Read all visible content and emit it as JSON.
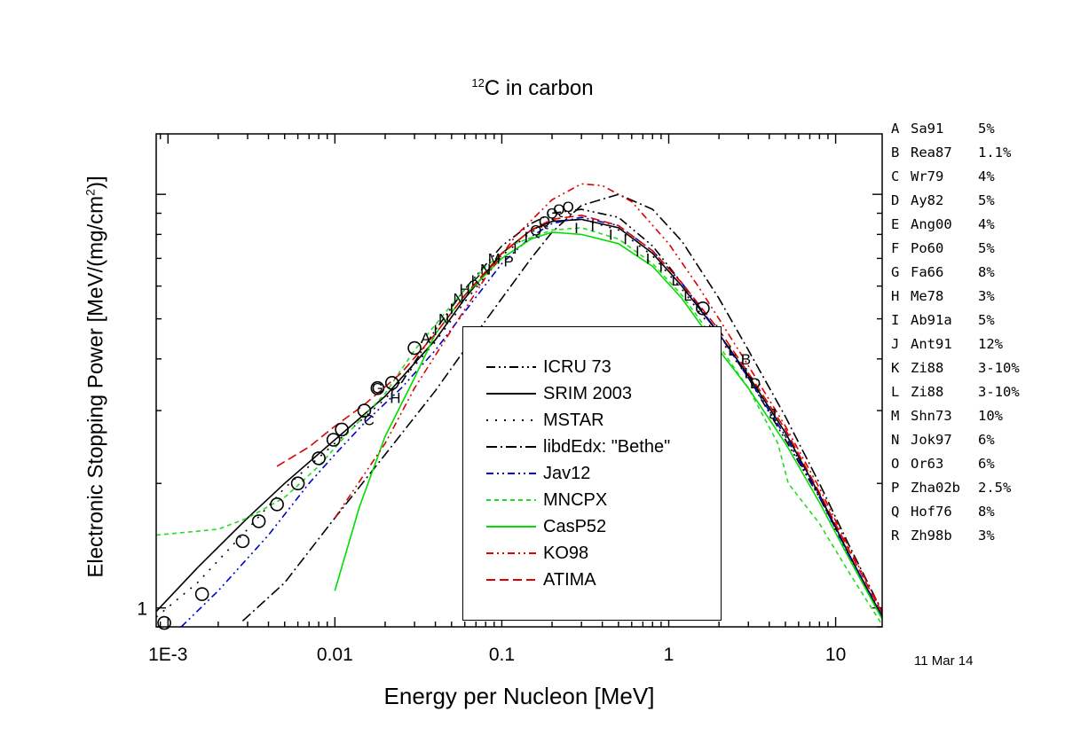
{
  "title": {
    "prefix": "12",
    "text": "C in carbon"
  },
  "xlabel": "Energy per Nucleon [MeV]",
  "ylabel": "Electronic Stopping Power [MeV/(mg/cm",
  "ylabel_sup": "2",
  "ylabel_end": ")]",
  "date_stamp": "11 Mar 14",
  "references": [
    {
      "letter": "A",
      "name": "Sa91",
      "error": "5%"
    },
    {
      "letter": "B",
      "name": "Rea87",
      "error": "1.1%"
    },
    {
      "letter": "C",
      "name": "Wr79",
      "error": "4%"
    },
    {
      "letter": "D",
      "name": "Ay82",
      "error": "5%"
    },
    {
      "letter": "E",
      "name": "Ang00",
      "error": "4%"
    },
    {
      "letter": "F",
      "name": "Po60",
      "error": "5%"
    },
    {
      "letter": "G",
      "name": "Fa66",
      "error": "8%"
    },
    {
      "letter": "H",
      "name": "Me78",
      "error": "3%"
    },
    {
      "letter": "I",
      "name": "Ab91a",
      "error": "5%"
    },
    {
      "letter": "J",
      "name": "Ant91",
      "error": "12%"
    },
    {
      "letter": "K",
      "name": "Zi88",
      "error": "3-10%"
    },
    {
      "letter": "L",
      "name": "Zi88",
      "error": "3-10%"
    },
    {
      "letter": "M",
      "name": "Shn73",
      "error": "10%"
    },
    {
      "letter": "N",
      "name": "Jok97",
      "error": "6%"
    },
    {
      "letter": "O",
      "name": "Or63",
      "error": "6%"
    },
    {
      "letter": "P",
      "name": "Zha02b",
      "error": "2.5%"
    },
    {
      "letter": "Q",
      "name": "Hof76",
      "error": "8%"
    },
    {
      "letter": "R",
      "name": "Zh98b",
      "error": "3%"
    }
  ],
  "chart_data": {
    "type": "line",
    "xscale": "log",
    "yscale": "log",
    "xlim": [
      0.00085,
      19
    ],
    "ylim": [
      0.9,
      14
    ],
    "xticks": [
      {
        "value": 0.001,
        "label": "1E-3"
      },
      {
        "value": 0.01,
        "label": "0.01"
      },
      {
        "value": 0.1,
        "label": "0.1"
      },
      {
        "value": 1,
        "label": "1"
      },
      {
        "value": 10,
        "label": "10"
      }
    ],
    "yticks": [
      {
        "value": 1,
        "label": "1"
      }
    ],
    "legend_placement": "center",
    "series": [
      {
        "name": "ICRU 73",
        "color": "#000000",
        "dash": "10,4,2,4,2,4",
        "x": [
          0.025,
          0.04,
          0.06,
          0.1,
          0.15,
          0.2,
          0.3,
          0.5,
          0.8,
          1.2,
          2,
          3,
          5,
          8,
          12,
          19
        ],
        "y": [
          3.5,
          4.7,
          5.9,
          7.5,
          8.5,
          9.0,
          9.2,
          8.8,
          7.5,
          6.1,
          4.6,
          3.6,
          2.55,
          1.85,
          1.35,
          0.95
        ]
      },
      {
        "name": "SRIM 2003",
        "color": "#000000",
        "dash": "",
        "x": [
          0.00085,
          0.0015,
          0.003,
          0.005,
          0.01,
          0.02,
          0.04,
          0.06,
          0.1,
          0.15,
          0.2,
          0.3,
          0.5,
          0.8,
          1.2,
          2,
          3,
          5,
          8,
          12,
          19
        ],
        "y": [
          0.98,
          1.25,
          1.65,
          2.0,
          2.55,
          3.25,
          4.45,
          5.6,
          7.2,
          8.2,
          8.6,
          8.7,
          8.3,
          7.2,
          6.0,
          4.6,
          3.65,
          2.65,
          1.88,
          1.35,
          0.95
        ]
      },
      {
        "name": "MSTAR",
        "color": "#000000",
        "dash": "2,8",
        "x": [
          0.00085,
          0.0015,
          0.003,
          0.005,
          0.01,
          0.02,
          0.04,
          0.06,
          0.1,
          0.15,
          0.2,
          0.3,
          0.5,
          0.8,
          1.2,
          2,
          3,
          5,
          8,
          12,
          19
        ],
        "y": [
          0.95,
          1.15,
          1.55,
          1.95,
          2.5,
          3.2,
          4.4,
          5.5,
          7.1,
          8.1,
          8.6,
          8.7,
          8.2,
          7.1,
          5.9,
          4.5,
          3.6,
          2.6,
          1.85,
          1.33,
          0.94
        ]
      },
      {
        "name": "libdEdx: \"Bethe\"",
        "color": "#000000",
        "dash": "12,4,2,4",
        "x": [
          0.0028,
          0.005,
          0.01,
          0.02,
          0.04,
          0.07,
          0.1,
          0.15,
          0.2,
          0.3,
          0.5,
          0.8,
          1.2,
          2,
          3,
          5,
          8,
          12,
          19
        ],
        "y": [
          0.93,
          1.15,
          1.65,
          2.35,
          3.35,
          4.6,
          5.6,
          7.0,
          8.1,
          9.4,
          10.0,
          9.2,
          7.7,
          5.6,
          4.2,
          2.9,
          2.0,
          1.42,
          0.98
        ]
      },
      {
        "name": "Jav12",
        "color": "#0000cc",
        "dash": "8,4,2,4,2,4",
        "x": [
          0.0012,
          0.002,
          0.004,
          0.007,
          0.01,
          0.015,
          0.025,
          0.04,
          0.06,
          0.1,
          0.15,
          0.2,
          0.3,
          0.5,
          0.8,
          1.2,
          2,
          3,
          5,
          8,
          12,
          19
        ],
        "y": [
          0.9,
          1.1,
          1.5,
          2.0,
          2.35,
          2.8,
          3.4,
          4.2,
          5.2,
          6.8,
          7.9,
          8.5,
          8.8,
          8.4,
          7.3,
          6.1,
          4.6,
          3.6,
          2.6,
          1.86,
          1.34,
          0.96
        ]
      },
      {
        "name": "MNCPX",
        "color": "#22dd22",
        "dash": "5,4",
        "x": [
          0.00085,
          0.002,
          0.003,
          0.005,
          0.008,
          0.012,
          0.02,
          0.03,
          0.05,
          0.08,
          0.12,
          0.2,
          0.3,
          0.5,
          0.8,
          1.2,
          2,
          3,
          4.5,
          5.2,
          8,
          12,
          19
        ],
        "y": [
          1.5,
          1.55,
          1.65,
          1.85,
          2.2,
          2.65,
          3.3,
          4.2,
          5.4,
          6.7,
          7.6,
          8.2,
          8.3,
          7.8,
          6.8,
          5.7,
          4.3,
          3.4,
          2.5,
          2.0,
          1.6,
          1.22,
          0.91
        ]
      },
      {
        "name": "CasP52",
        "color": "#00dd00",
        "dash": "",
        "x": [
          0.01,
          0.014,
          0.02,
          0.03,
          0.04,
          0.06,
          0.1,
          0.15,
          0.2,
          0.3,
          0.5,
          0.8,
          1.2,
          2,
          3,
          5,
          8,
          12,
          19
        ],
        "y": [
          1.1,
          1.75,
          2.6,
          3.6,
          4.6,
          5.7,
          7.0,
          7.8,
          8.1,
          8.0,
          7.6,
          6.7,
          5.6,
          4.2,
          3.4,
          2.5,
          1.8,
          1.32,
          0.94
        ]
      },
      {
        "name": "KO98",
        "color": "#dd0000",
        "dash": "8,4,2,4,2,4",
        "x": [
          0.01,
          0.02,
          0.03,
          0.05,
          0.08,
          0.12,
          0.2,
          0.3,
          0.4,
          0.6,
          1.0,
          1.5,
          2,
          3,
          5,
          8,
          12,
          19
        ],
        "y": [
          1.65,
          2.5,
          3.4,
          4.7,
          6.3,
          7.9,
          9.7,
          10.6,
          10.5,
          9.6,
          7.6,
          6.0,
          5.0,
          3.85,
          2.75,
          1.95,
          1.4,
          0.98
        ]
      },
      {
        "name": "ATIMA",
        "color": "#dd0000",
        "dash": "10,5",
        "x": [
          0.0045,
          0.007,
          0.01,
          0.015,
          0.025,
          0.04,
          0.06,
          0.1,
          0.15,
          0.2,
          0.3,
          0.5,
          0.8,
          1.2,
          2,
          3,
          5,
          8,
          12,
          19
        ],
        "y": [
          2.2,
          2.45,
          2.75,
          3.1,
          3.7,
          4.6,
          5.7,
          7.2,
          8.2,
          8.7,
          8.9,
          8.4,
          7.3,
          6.1,
          4.7,
          3.7,
          2.7,
          1.9,
          1.38,
          0.97
        ]
      }
    ],
    "markers": [
      {
        "label": "O",
        "x": 0.00095,
        "y": 0.92
      },
      {
        "label": "O",
        "x": 0.0016,
        "y": 1.08
      },
      {
        "label": "O",
        "x": 0.0028,
        "y": 1.45
      },
      {
        "label": "O",
        "x": 0.0035,
        "y": 1.62
      },
      {
        "label": "O",
        "x": 0.0045,
        "y": 1.78
      },
      {
        "label": "O",
        "x": 0.006,
        "y": 2.0
      },
      {
        "label": "O",
        "x": 0.008,
        "y": 2.3
      },
      {
        "label": "O",
        "x": 0.0098,
        "y": 2.55
      },
      {
        "label": "O",
        "x": 0.011,
        "y": 2.7
      },
      {
        "label": "O",
        "x": 0.015,
        "y": 3.0
      },
      {
        "label": "O",
        "x": 0.018,
        "y": 3.4
      },
      {
        "label": "O",
        "x": 0.022,
        "y": 3.5
      },
      {
        "label": "O",
        "x": 0.03,
        "y": 4.25
      },
      {
        "label": "C",
        "x": 0.016,
        "y": 2.85
      },
      {
        "label": "G",
        "x": 0.018,
        "y": 3.4
      },
      {
        "label": "I",
        "x": 0.022,
        "y": 3.3
      },
      {
        "label": "H",
        "x": 0.023,
        "y": 3.22
      },
      {
        "label": "A",
        "x": 0.035,
        "y": 4.5
      },
      {
        "label": "I",
        "x": 0.04,
        "y": 4.7
      },
      {
        "label": "N",
        "x": 0.045,
        "y": 5.0
      },
      {
        "label": "I",
        "x": 0.05,
        "y": 5.3
      },
      {
        "label": "N",
        "x": 0.055,
        "y": 5.6
      },
      {
        "label": "H",
        "x": 0.06,
        "y": 5.9
      },
      {
        "label": "K",
        "x": 0.07,
        "y": 6.2
      },
      {
        "label": "N",
        "x": 0.08,
        "y": 6.6
      },
      {
        "label": "M",
        "x": 0.09,
        "y": 7.0
      },
      {
        "label": "P",
        "x": 0.11,
        "y": 6.9
      },
      {
        "label": "I",
        "x": 0.12,
        "y": 7.4
      },
      {
        "label": "I",
        "x": 0.14,
        "y": 7.9
      },
      {
        "label": "Q",
        "x": 0.16,
        "y": 8.2
      },
      {
        "label": "Q",
        "x": 0.18,
        "y": 8.6
      },
      {
        "label": "Q",
        "x": 0.2,
        "y": 9.0
      },
      {
        "label": "Q",
        "x": 0.22,
        "y": 9.2
      },
      {
        "label": "Q",
        "x": 0.25,
        "y": 9.35
      },
      {
        "label": "I",
        "x": 0.28,
        "y": 8.3
      },
      {
        "label": "I",
        "x": 0.35,
        "y": 8.4
      },
      {
        "label": "I",
        "x": 0.45,
        "y": 8.0
      },
      {
        "label": "I",
        "x": 0.55,
        "y": 7.8
      },
      {
        "label": "I",
        "x": 0.65,
        "y": 7.3
      },
      {
        "label": "I",
        "x": 0.75,
        "y": 7.0
      },
      {
        "label": "I",
        "x": 0.9,
        "y": 6.7
      },
      {
        "label": "L",
        "x": 1.1,
        "y": 6.2
      },
      {
        "label": "L",
        "x": 1.3,
        "y": 5.7
      },
      {
        "label": "O",
        "x": 1.6,
        "y": 5.3
      },
      {
        "label": "L",
        "x": 2.0,
        "y": 4.7
      },
      {
        "label": "L",
        "x": 2.4,
        "y": 4.2
      },
      {
        "label": "B",
        "x": 2.9,
        "y": 4.0
      },
      {
        "label": "L",
        "x": 3.0,
        "y": 3.7
      },
      {
        "label": "D",
        "x": 3.3,
        "y": 3.5
      },
      {
        "label": "J",
        "x": 4.2,
        "y": 2.95
      }
    ]
  }
}
